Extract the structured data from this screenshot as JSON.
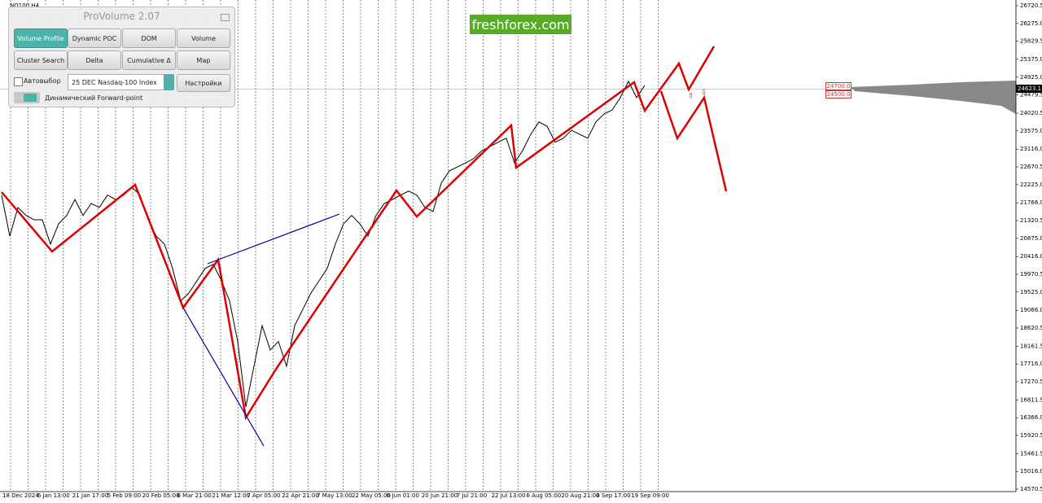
{
  "window": {
    "symbol": "NQ100,H4",
    "watermark": "freshforex.com",
    "current_price": "24623.1",
    "levels": [
      "24700.0",
      "24500.0"
    ],
    "x_axis_labels": [
      "18 Dec 2024",
      "6 Jan 13:00",
      "21 Jan 17:00",
      "5 Feb 09:00",
      "20 Feb 05:00",
      "6 Mar 21:00",
      "21 Mar 12:00",
      "7 Apr 05:00",
      "22 Apr 21:00",
      "7 May 13:00",
      "22 May 05:00",
      "6 Jun 01:00",
      "20 Jun 21:00",
      "7 Jul 21:00",
      "22 Jul 13:00",
      "6 Aug 05:00",
      "20 Aug 21:00",
      "4 Sep 17:00",
      "19 Sep 09:00"
    ]
  },
  "panel": {
    "title": "ProVolume 2.07",
    "buttons": [
      "Volume Profile",
      "Dynamic POC",
      "DOM",
      "Volume",
      "Cluster Search",
      "Delta",
      "Cumulative Δ",
      "Map"
    ],
    "autoselect": "Автовыбор",
    "instrument": "25 DEC Nasdaq-100 Index",
    "settings": "Настройки",
    "forward_point": "Динамический Forward-point"
  },
  "chart_data": {
    "type": "line",
    "color": "#000000",
    "ylim": [
      14509,
      26864
    ],
    "yticks": [
      26720.5,
      {
        "value": 26275,
        "label": "26275.0"
      },
      25829.5,
      {
        "value": 25375,
        "label": "25375.0"
      },
      {
        "value": 24925,
        "label": "24925.0"
      },
      24479.5,
      24020.5,
      {
        "value": 23575,
        "label": "23575.0"
      },
      {
        "value": 23116,
        "label": "23116.0"
      },
      22670.5,
      {
        "value": 22225,
        "label": "22225.0"
      },
      {
        "value": 21766,
        "label": "21766.0"
      },
      21320.5,
      {
        "value": 20875,
        "label": "20875.0"
      },
      {
        "value": 20416,
        "label": "20416.0"
      },
      19970.5,
      {
        "value": 19525,
        "label": "19525.0"
      },
      {
        "value": 19066,
        "label": "19066.0"
      },
      18620.5,
      18161.5,
      {
        "value": 17716,
        "label": "17716.0"
      },
      17270.5,
      16811.5,
      {
        "value": 16366,
        "label": "16366.0"
      },
      15920.5,
      15461.5,
      {
        "value": 15016,
        "label": "15016.0"
      },
      14570.5
    ],
    "values": [
      21960,
      20930,
      21650,
      21450,
      21340,
      21340,
      20730,
      21240,
      21450,
      21850,
      21450,
      21750,
      21650,
      21960,
      21850,
      21960,
      22160,
      21960,
      21340,
      20930,
      20730,
      20120,
      19300,
      19500,
      19810,
      20120,
      20220,
      19810,
      19300,
      18280,
      16640,
      17660,
      18680,
      18070,
      18280,
      17660,
      18680,
      19090,
      19500,
      19810,
      20120,
      20730,
      21240,
      21450,
      21240,
      20930,
      21450,
      21750,
      21850,
      21960,
      22060,
      21960,
      21650,
      21550,
      22260,
      22570,
      22670,
      22770,
      22880,
      23080,
      23180,
      23290,
      23390,
      22770,
      23080,
      23490,
      23800,
      23690,
      23290,
      23390,
      23590,
      23490,
      23390,
      23800,
      24000,
      24100,
      24410,
      24820,
      24410,
      24720
    ]
  }
}
